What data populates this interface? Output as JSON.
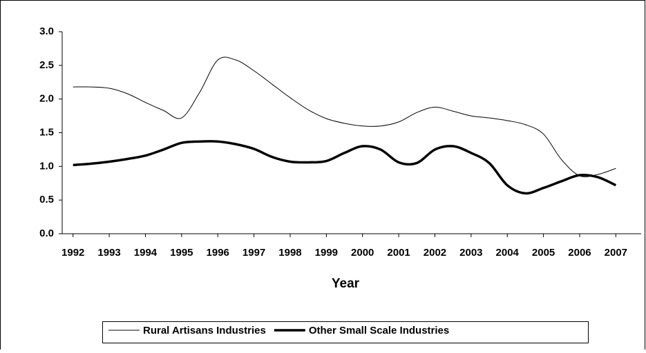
{
  "chart_data": {
    "type": "line",
    "x_label": "Year",
    "x": [
      1992,
      1992.5,
      1993,
      1993.5,
      1994,
      1994.5,
      1995,
      1995.5,
      1996,
      1996.5,
      1997,
      1997.5,
      1998,
      1998.5,
      1999,
      1999.5,
      2000,
      2000.5,
      2001,
      2001.5,
      2002,
      2002.5,
      2003,
      2003.5,
      2004,
      2004.5,
      2005,
      2005.5,
      2006,
      2006.5,
      2007
    ],
    "series": [
      {
        "name": "Rural Artisans Industries",
        "color": "#000000",
        "width": 1,
        "values": [
          2.18,
          2.18,
          2.16,
          2.08,
          1.95,
          1.83,
          1.72,
          2.1,
          2.58,
          2.58,
          2.42,
          2.22,
          2.02,
          1.84,
          1.71,
          1.64,
          1.6,
          1.6,
          1.66,
          1.8,
          1.88,
          1.82,
          1.75,
          1.72,
          1.68,
          1.62,
          1.48,
          1.1,
          0.86,
          0.88,
          0.97
        ]
      },
      {
        "name": "Other Small Scale Industries",
        "color": "#000000",
        "width": 3.5,
        "values": [
          1.02,
          1.04,
          1.07,
          1.11,
          1.16,
          1.25,
          1.35,
          1.37,
          1.37,
          1.33,
          1.26,
          1.14,
          1.07,
          1.06,
          1.08,
          1.2,
          1.3,
          1.25,
          1.06,
          1.05,
          1.25,
          1.3,
          1.2,
          1.05,
          0.72,
          0.6,
          0.68,
          0.78,
          0.87,
          0.84,
          0.72
        ]
      }
    ],
    "xlim": [
      1991.7,
      2007.7
    ],
    "xticks": [
      1992,
      1993,
      1994,
      1995,
      1996,
      1997,
      1998,
      1999,
      2000,
      2001,
      2002,
      2003,
      2004,
      2005,
      2006,
      2007
    ],
    "ylim": [
      0,
      3
    ],
    "yticks": [
      {
        "value": 0,
        "label": "0.0"
      },
      {
        "value": 0.5,
        "label": "0.5"
      },
      {
        "value": 1,
        "label": "1.0"
      },
      {
        "value": 1.5,
        "label": "1.5"
      },
      {
        "value": 2,
        "label": "2.0"
      },
      {
        "value": 2.5,
        "label": "2.5"
      },
      {
        "value": 3,
        "label": "3.0"
      }
    ],
    "grid": false,
    "legend": "bottom"
  }
}
